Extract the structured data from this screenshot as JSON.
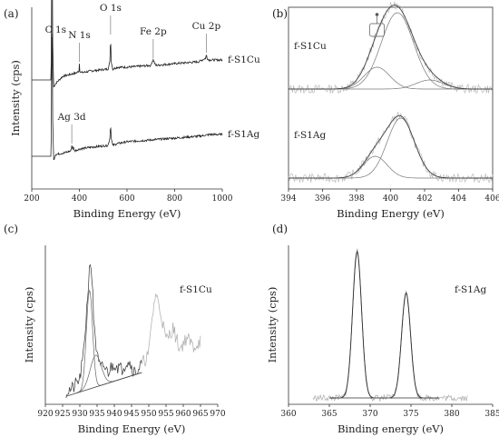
{
  "chart_data": [
    {
      "id": "a",
      "panel_label": "(a)",
      "type": "line",
      "xlabel": "Binding Energy (eV)",
      "ylabel": "Intensity (cps)",
      "xlim": [
        200,
        1000
      ],
      "xticks": [
        200,
        400,
        600,
        800,
        1000
      ],
      "grid": false,
      "y_ticks_shown": false,
      "series": [
        {
          "name": "f-S1Cu",
          "offset": 0.6,
          "x": [
            200,
            270,
            280,
            282,
            285,
            288,
            292,
            300,
            330,
            390,
            398,
            400,
            402,
            410,
            450,
            520,
            528,
            531,
            534,
            540,
            560,
            600,
            700,
            705,
            710,
            720,
            800,
            900,
            930,
            933,
            936,
            945,
            1000
          ],
          "y": [
            0.0,
            0.0,
            0.0,
            0.1,
            0.97,
            0.2,
            -0.04,
            -0.02,
            0.02,
            0.04,
            0.05,
            0.09,
            0.05,
            0.04,
            0.05,
            0.06,
            0.1,
            0.24,
            0.1,
            0.06,
            0.07,
            0.07,
            0.08,
            0.1,
            0.11,
            0.08,
            0.09,
            0.1,
            0.12,
            0.14,
            0.12,
            0.11,
            0.11
          ]
        },
        {
          "name": "f-S1Ag",
          "offset": 0.18,
          "x": [
            200,
            270,
            280,
            282,
            285,
            288,
            292,
            300,
            340,
            365,
            368,
            371,
            375,
            380,
            400,
            450,
            520,
            528,
            531,
            534,
            540,
            560,
            600,
            700,
            800,
            900,
            950,
            1000
          ],
          "y": [
            0.0,
            0.0,
            0.0,
            0.1,
            0.91,
            0.2,
            -0.02,
            0.01,
            0.02,
            0.03,
            0.06,
            0.04,
            0.05,
            0.03,
            0.04,
            0.05,
            0.06,
            0.1,
            0.18,
            0.1,
            0.06,
            0.07,
            0.08,
            0.09,
            0.1,
            0.11,
            0.12,
            0.12
          ]
        }
      ],
      "annotations": [
        {
          "text": "C 1s",
          "x": 285
        },
        {
          "text": "N 1s",
          "x": 400
        },
        {
          "text": "O 1s",
          "x": 531
        },
        {
          "text": "Fe 2p",
          "x": 710
        },
        {
          "text": "Cu 2p",
          "x": 933
        },
        {
          "text": "Ag 3d",
          "x": 368
        }
      ]
    },
    {
      "id": "b",
      "panel_label": "(b)",
      "type": "line",
      "xlabel": "Binding Energy (eV)",
      "ylabel": "",
      "xlim": [
        394,
        406
      ],
      "xticks": [
        394,
        396,
        398,
        400,
        402,
        404,
        406
      ],
      "grid": false,
      "y_ticks_shown": false,
      "series": [
        {
          "name": "f-S1Cu",
          "offset": 0.55,
          "components": [
            {
              "center": 399.2,
              "amp": 0.12,
              "sigma": 0.75
            },
            {
              "center": 400.4,
              "amp": 0.42,
              "sigma": 0.95
            },
            {
              "center": 402.3,
              "amp": 0.05,
              "sigma": 0.8
            }
          ]
        },
        {
          "name": "f-S1Ag",
          "offset": 0.06,
          "components": [
            {
              "center": 399.1,
              "amp": 0.12,
              "sigma": 0.7
            },
            {
              "center": 400.6,
              "amp": 0.33,
              "sigma": 0.8
            }
          ]
        }
      ]
    },
    {
      "id": "c",
      "panel_label": "(c)",
      "type": "line",
      "xlabel": "Binding Energy (eV)",
      "ylabel": "Intensity (cps)",
      "xlim": [
        920,
        970
      ],
      "xticks": [
        920,
        925,
        930,
        935,
        940,
        945,
        950,
        955,
        960,
        965,
        970
      ],
      "grid": false,
      "y_ticks_shown": false,
      "series": [
        {
          "name": "f-S1Cu",
          "x": [
            926,
            928,
            930,
            931,
            932,
            933,
            933.5,
            934,
            935,
            936,
            937,
            938,
            940,
            942,
            944,
            946,
            948,
            950,
            951,
            952,
            953,
            954,
            955,
            957,
            959,
            961,
            963,
            965
          ],
          "y": [
            0.08,
            0.1,
            0.16,
            0.3,
            0.6,
            0.92,
            0.8,
            0.55,
            0.3,
            0.22,
            0.24,
            0.2,
            0.26,
            0.22,
            0.28,
            0.2,
            0.25,
            0.32,
            0.55,
            0.7,
            0.62,
            0.52,
            0.4,
            0.48,
            0.35,
            0.42,
            0.36,
            0.4
          ]
        }
      ],
      "components": [
        {
          "center": 932.8,
          "amp": 0.62,
          "sigma": 0.9
        },
        {
          "center": 934.6,
          "amp": 0.2,
          "sigma": 1.6
        }
      ],
      "baseline": {
        "x": [
          926,
          948
        ],
        "y": [
          0.05,
          0.2
        ]
      }
    },
    {
      "id": "d",
      "panel_label": "(d)",
      "type": "line",
      "xlabel": "Binding energy (eV)",
      "ylabel": "Intensity (cps)",
      "xlim": [
        360,
        385
      ],
      "xticks": [
        360,
        365,
        370,
        375,
        380,
        385
      ],
      "grid": false,
      "y_ticks_shown": false,
      "series": [
        {
          "name": "f-S1Ag",
          "components": [
            {
              "center": 368.4,
              "amp": 0.92,
              "sigma": 0.55
            },
            {
              "center": 374.4,
              "amp": 0.66,
              "sigma": 0.55
            }
          ]
        }
      ],
      "baseline": {
        "x": [
          366,
          378
        ],
        "y": [
          0.04,
          0.04
        ]
      }
    }
  ]
}
